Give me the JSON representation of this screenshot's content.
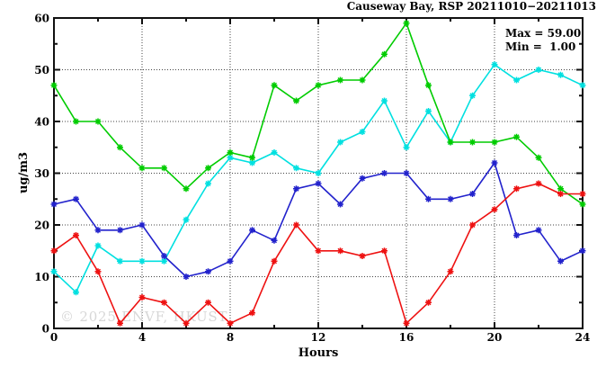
{
  "watermark": "© 2025 ENVF, HKUST",
  "chart_data": {
    "type": "line",
    "title": "Causeway Bay, RSP 20211010−20211013",
    "annotations": {
      "max_label": "Max = 59.00",
      "min_label": "Min =  1.00"
    },
    "xlabel": "Hours",
    "ylabel": "ug/m3",
    "xlim": [
      0,
      24
    ],
    "ylim": [
      0,
      60
    ],
    "x_major_ticks": [
      0,
      4,
      8,
      12,
      16,
      20,
      24
    ],
    "x_minor_step": 2,
    "y_major_ticks": [
      0,
      10,
      20,
      30,
      40,
      50,
      60
    ],
    "y_minor_step": 5,
    "grid": "dotted-at-major-ticks",
    "legend": "none",
    "marker": "asterisk",
    "frame": "box-with-inward-ticks",
    "max_value": 59.0,
    "min_value": 1.0,
    "x": [
      0,
      1,
      2,
      3,
      4,
      5,
      6,
      7,
      8,
      9,
      10,
      11,
      12,
      13,
      14,
      15,
      16,
      17,
      18,
      19,
      20,
      21,
      22,
      23,
      24
    ],
    "series": [
      {
        "name": "cyan-series",
        "color": "#00e0e0",
        "values": [
          11,
          7,
          16,
          13,
          13,
          13,
          21,
          28,
          33,
          32,
          34,
          31,
          30,
          36,
          38,
          44,
          35,
          42,
          36,
          45,
          51,
          48,
          50,
          49,
          47
        ]
      },
      {
        "name": "green-series",
        "color": "#00cc00",
        "values": [
          47,
          40,
          40,
          35,
          31,
          31,
          27,
          31,
          34,
          33,
          47,
          44,
          47,
          48,
          48,
          53,
          59,
          47,
          36,
          36,
          36,
          37,
          33,
          27,
          24
        ]
      },
      {
        "name": "blue-series",
        "color": "#2222cc",
        "values": [
          24,
          25,
          19,
          19,
          20,
          14,
          10,
          11,
          13,
          19,
          17,
          27,
          28,
          24,
          29,
          30,
          30,
          25,
          25,
          26,
          32,
          18,
          19,
          13,
          15
        ]
      },
      {
        "name": "red-series",
        "color": "#ee1111",
        "values": [
          15,
          18,
          11,
          1,
          6,
          5,
          1,
          5,
          1,
          3,
          13,
          20,
          15,
          15,
          14,
          15,
          1,
          5,
          11,
          20,
          23,
          27,
          28,
          26,
          26
        ]
      }
    ]
  }
}
